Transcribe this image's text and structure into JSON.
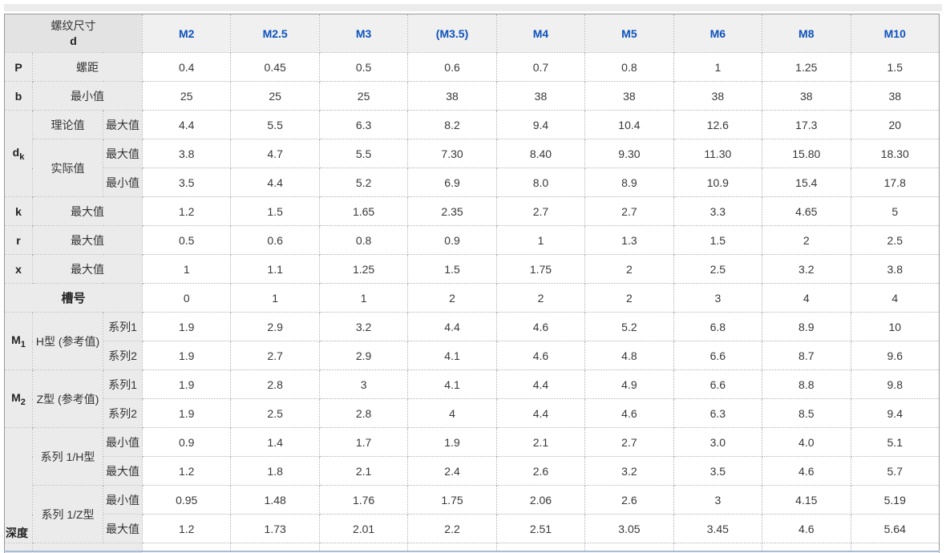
{
  "colors": {
    "column_header_text": "#0d52bd",
    "label_cell_bg": "#ebebeb",
    "corner_cell_bg": "#e3e3e3",
    "column_header_bg": "#f0f0f0"
  },
  "table": {
    "corner_line1": "螺纹尺寸",
    "corner_line2": "d",
    "columns": [
      "M2",
      "M2.5",
      "M3",
      "(M3.5)",
      "M4",
      "M5",
      "M6",
      "M8",
      "M10"
    ],
    "p": {
      "sym": "P",
      "label": "螺距",
      "values": [
        "0.4",
        "0.45",
        "0.5",
        "0.6",
        "0.7",
        "0.8",
        "1",
        "1.25",
        "1.5"
      ]
    },
    "b": {
      "sym": "b",
      "label": "最小值",
      "values": [
        "25",
        "25",
        "25",
        "38",
        "38",
        "38",
        "38",
        "38",
        "38"
      ]
    },
    "dk": {
      "sym": "d",
      "sub": "k",
      "theory_label": "理论值",
      "theory_max_label": "最大值",
      "theory_max_values": [
        "4.4",
        "5.5",
        "6.3",
        "8.2",
        "9.4",
        "10.4",
        "12.6",
        "17.3",
        "20"
      ],
      "actual_label": "实际值",
      "actual_max_label": "最大值",
      "actual_max_values": [
        "3.8",
        "4.7",
        "5.5",
        "7.30",
        "8.40",
        "9.30",
        "11.30",
        "15.80",
        "18.30"
      ],
      "actual_min_label": "最小值",
      "actual_min_values": [
        "3.5",
        "4.4",
        "5.2",
        "6.9",
        "8.0",
        "8.9",
        "10.9",
        "15.4",
        "17.8"
      ]
    },
    "k": {
      "sym": "k",
      "label": "最大值",
      "values": [
        "1.2",
        "1.5",
        "1.65",
        "2.35",
        "2.7",
        "2.7",
        "3.3",
        "4.65",
        "5"
      ]
    },
    "r": {
      "sym": "r",
      "label": "最大值",
      "values": [
        "0.5",
        "0.6",
        "0.8",
        "0.9",
        "1",
        "1.3",
        "1.5",
        "2",
        "2.5"
      ]
    },
    "x": {
      "sym": "x",
      "label": "最大值",
      "values": [
        "1",
        "1.1",
        "1.25",
        "1.5",
        "1.75",
        "2",
        "2.5",
        "3.2",
        "3.8"
      ]
    },
    "slot": {
      "label": "槽号",
      "values": [
        "0",
        "1",
        "1",
        "2",
        "2",
        "2",
        "3",
        "4",
        "4"
      ]
    },
    "m1": {
      "sym": "M",
      "sub": "1",
      "type_label": "H型 (参考值)",
      "s1_label": "系列1",
      "s1_values": [
        "1.9",
        "2.9",
        "3.2",
        "4.4",
        "4.6",
        "5.2",
        "6.8",
        "8.9",
        "10"
      ],
      "s2_label": "系列2",
      "s2_values": [
        "1.9",
        "2.7",
        "2.9",
        "4.1",
        "4.6",
        "4.8",
        "6.6",
        "8.7",
        "9.6"
      ]
    },
    "m2": {
      "sym": "M",
      "sub": "2",
      "type_label": "Z型 (参考值)",
      "s1_label": "系列1",
      "s1_values": [
        "1.9",
        "2.8",
        "3",
        "4.1",
        "4.4",
        "4.9",
        "6.6",
        "8.8",
        "9.8"
      ],
      "s2_label": "系列2",
      "s2_values": [
        "1.9",
        "2.5",
        "2.8",
        "4",
        "4.4",
        "4.6",
        "6.3",
        "8.5",
        "9.4"
      ]
    },
    "depth": {
      "label": "深度",
      "h_label": "系列 1/H型",
      "h_min_label": "最小值",
      "h_min_values": [
        "0.9",
        "1.4",
        "1.7",
        "1.9",
        "2.1",
        "2.7",
        "3.0",
        "4.0",
        "5.1"
      ],
      "h_max_label": "最大值",
      "h_max_values": [
        "1.2",
        "1.8",
        "2.1",
        "2.4",
        "2.6",
        "3.2",
        "3.5",
        "4.6",
        "5.7"
      ],
      "z_label": "系列 1/Z型",
      "z_min_label": "最小值",
      "z_min_values": [
        "0.95",
        "1.48",
        "1.76",
        "1.75",
        "2.06",
        "2.6",
        "3",
        "4.15",
        "5.19"
      ],
      "z_max_label": "最大值",
      "z_max_values": [
        "1.2",
        "1.73",
        "2.01",
        "2.2",
        "2.51",
        "3.05",
        "3.45",
        "4.6",
        "5.64"
      ]
    }
  }
}
